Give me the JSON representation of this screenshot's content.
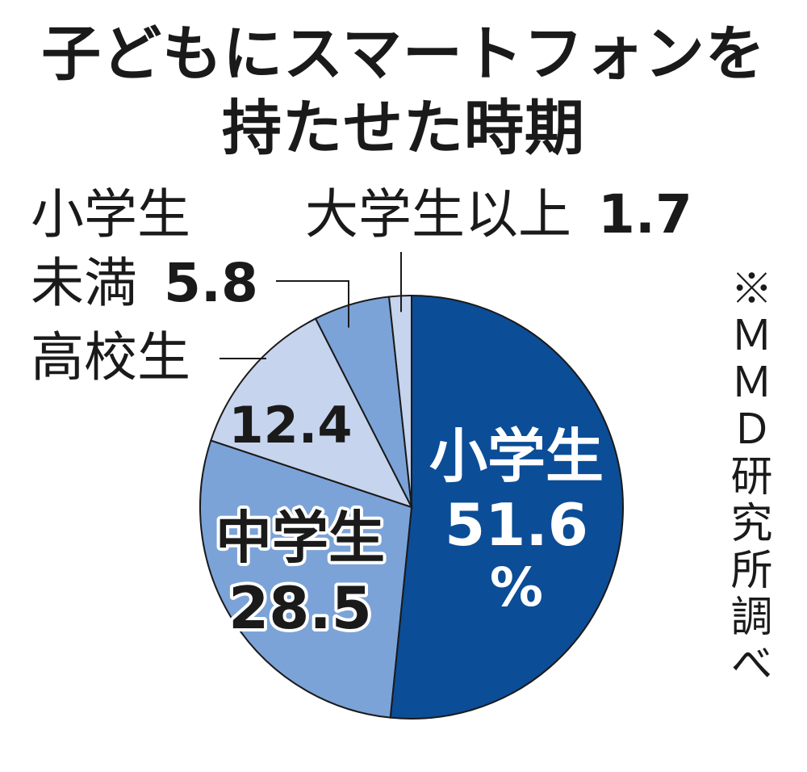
{
  "chart_data": {
    "type": "pie",
    "title_line1": "子どもにスマートフォンを",
    "title_line2": "持たせた時期",
    "unit": "%",
    "slices": [
      {
        "label": "小学生",
        "value": 51.6,
        "value_text": "51.6",
        "color": "#0b4d97"
      },
      {
        "label": "中学生",
        "value": 28.5,
        "value_text": "28.5",
        "color": "#7ba3d8"
      },
      {
        "label": "高校生",
        "value": 12.4,
        "value_text": "12.4",
        "color": "#c6d4ee"
      },
      {
        "label_line1": "小学生",
        "label_line2": "未満",
        "value": 5.8,
        "value_text": "5.8",
        "color": "#7ba3d8"
      },
      {
        "label": "大学生以上",
        "value": 1.7,
        "value_text": "1.7",
        "color": "#c6d4ee"
      }
    ],
    "source": "※ＭＭＤ研究所調べ"
  }
}
